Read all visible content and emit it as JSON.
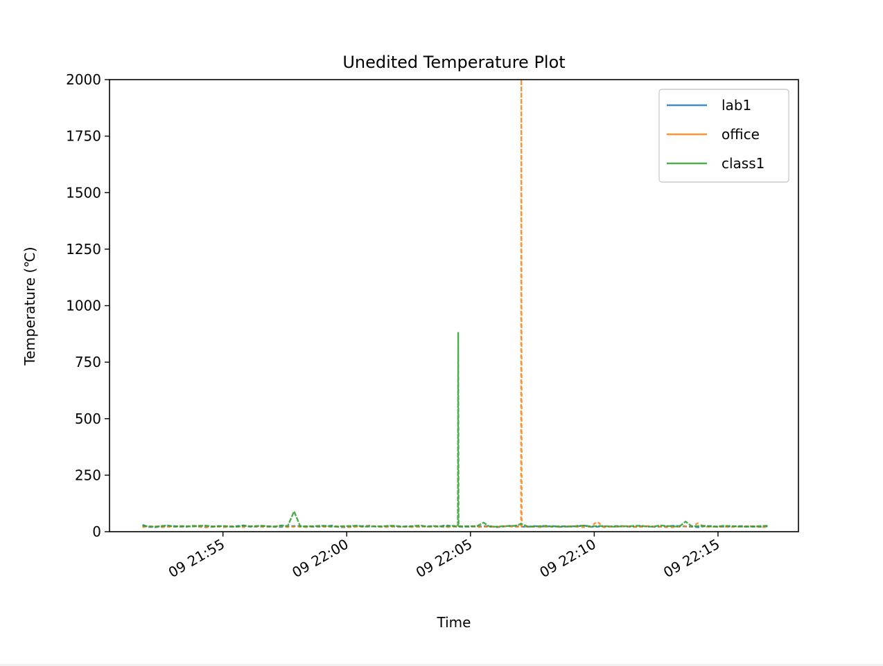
{
  "chart_data": {
    "type": "line",
    "title": "Unedited Temperature Plot",
    "xlabel": "Time",
    "ylabel": "Temperature (℃)",
    "x_start": "09 21:51:45",
    "x_end": "09 22:16:45",
    "xlim": [
      "09 21:50:25",
      "09 22:18:15"
    ],
    "ylim": [
      0,
      2000
    ],
    "y_ticks": [
      "0",
      "250",
      "500",
      "750",
      "1000",
      "1250",
      "1500",
      "1750",
      "2000"
    ],
    "x_ticks": [
      "09 21:55",
      "09 22:00",
      "09 22:05",
      "09 22:10",
      "09 22:15"
    ],
    "legend_position": "top-right",
    "grid": false,
    "series": [
      {
        "name": "lab1",
        "color": "#1f77b4",
        "baseline": 23,
        "values": [
          30,
          20,
          24,
          22,
          26,
          21,
          25,
          23,
          28,
          22,
          24,
          21,
          25,
          23,
          22,
          27,
          20,
          24,
          26,
          22,
          23,
          25,
          21,
          24,
          29,
          22,
          23,
          24,
          20,
          26,
          22,
          25,
          23,
          21,
          24,
          27,
          22,
          23,
          25,
          21,
          24,
          22,
          26,
          23,
          20,
          25,
          22,
          24,
          23,
          21
        ]
      },
      {
        "name": "office",
        "color": "#ff7f0e",
        "baseline": 22,
        "values": [
          20,
          24,
          21,
          23,
          25,
          19,
          22,
          24,
          20,
          23,
          21,
          26,
          22,
          20,
          24,
          23,
          21,
          22,
          25,
          20,
          23,
          22,
          24,
          21,
          20,
          23,
          25,
          22,
          21,
          24,
          2000,
          22,
          23,
          21,
          24,
          20,
          45,
          22,
          23,
          21,
          25,
          22,
          20,
          24,
          38,
          21,
          23,
          22,
          24,
          20
        ]
      },
      {
        "name": "class1",
        "color": "#2ca02c",
        "baseline": 24,
        "values": [
          26,
          22,
          28,
          25,
          23,
          27,
          24,
          22,
          26,
          25,
          23,
          28,
          90,
          24,
          26,
          22,
          25,
          27,
          23,
          24,
          26,
          22,
          28,
          25,
          23,
          880,
          24,
          40,
          22,
          25,
          35,
          23,
          26,
          24,
          22,
          27,
          25,
          23,
          24,
          26,
          22,
          28,
          24,
          45,
          25,
          23,
          26,
          24,
          22,
          25
        ]
      }
    ]
  }
}
